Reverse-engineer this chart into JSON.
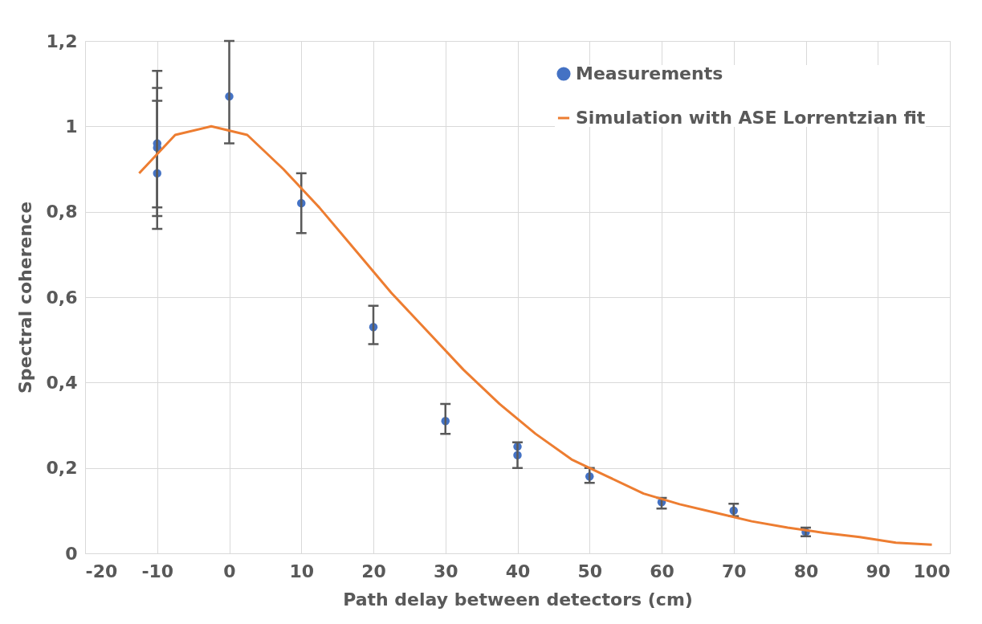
{
  "chart_data": {
    "type": "scatter",
    "xlabel": "Path delay between detectors (cm)",
    "ylabel": "Spectral coherence",
    "xlim": [
      -20,
      100
    ],
    "xticks": [
      -20,
      -10,
      0,
      10,
      20,
      30,
      40,
      50,
      60,
      70,
      80,
      90,
      100
    ],
    "ylim": [
      0,
      1.2
    ],
    "yticks": [
      0,
      {
        "value": 0.2,
        "label": "0,2"
      },
      {
        "value": 0.4,
        "label": "0,4"
      },
      {
        "value": 0.6,
        "label": "0,6"
      },
      {
        "value": 0.8,
        "label": "0,8"
      },
      1,
      {
        "value": 1.2,
        "label": "1,2"
      }
    ],
    "grid": true,
    "legend": "top right",
    "series": [
      {
        "name": "Measurements",
        "marker": "circle",
        "color": "#4472c4",
        "x": [
          -10,
          -10,
          -10,
          0,
          10,
          20,
          30,
          40,
          40,
          50,
          60,
          70,
          80
        ],
        "values": [
          0.96,
          0.95,
          0.89,
          1.07,
          0.82,
          0.53,
          0.31,
          0.25,
          0.23,
          0.18,
          0.12,
          0.1,
          0.05
        ],
        "errors": [
          [
            0.79,
            1.13
          ],
          [
            0.81,
            1.09
          ],
          [
            0.76,
            1.06
          ],
          [
            0.96,
            1.2
          ],
          [
            0.75,
            0.89
          ],
          [
            0.49,
            0.58
          ],
          [
            0.28,
            0.35
          ],
          null,
          [
            0.2,
            0.26
          ],
          [
            0.165,
            0.2
          ],
          [
            0.105,
            0.13
          ],
          [
            0.087,
            0.116
          ],
          [
            0.04,
            0.06
          ]
        ]
      },
      {
        "name": "Simulation with ASE Lorrentzian fit",
        "type": "line",
        "color": "#ed7d31",
        "line_style": "solid",
        "x": [
          -12.5,
          -7.5,
          -2.5,
          2.5,
          7.5,
          12.5,
          17.5,
          22.5,
          27.5,
          32.5,
          37.5,
          42.5,
          47.5,
          52.5,
          57.5,
          62.5,
          67.5,
          72.5,
          77.5,
          82.5,
          87.5,
          92.5,
          97.5
        ],
        "values": [
          0.89,
          0.98,
          1.0,
          0.98,
          0.9,
          0.81,
          0.71,
          0.61,
          0.52,
          0.43,
          0.35,
          0.28,
          0.22,
          0.18,
          0.14,
          0.115,
          0.095,
          0.075,
          0.06,
          0.048,
          0.038,
          0.025,
          0.02
        ]
      }
    ]
  }
}
